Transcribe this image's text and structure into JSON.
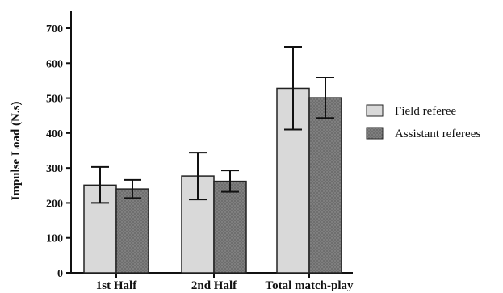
{
  "chart_data": {
    "type": "bar",
    "title": "",
    "xlabel": "",
    "ylabel": "Impulse Load (N.s)",
    "categories": [
      "1st Half",
      "2nd Half",
      "Total match-play"
    ],
    "series": [
      {
        "name": "Field referee",
        "color": "#d9d9d9",
        "pattern": "solid-light-gray",
        "values": [
          251,
          277,
          528
        ],
        "error_low": [
          200,
          210,
          410
        ],
        "error_high": [
          303,
          344,
          647
        ]
      },
      {
        "name": "Assistant referees",
        "color": "#6e6e6e",
        "pattern": "dotted-dark-gray",
        "values": [
          240,
          262,
          501
        ],
        "error_low": [
          214,
          232,
          443
        ],
        "error_high": [
          266,
          293,
          559
        ]
      }
    ],
    "ylim": [
      0,
      700
    ],
    "yticks": [
      "0",
      "100",
      "200",
      "300",
      "400",
      "500",
      "600",
      "700"
    ],
    "grid": false,
    "legend_position": "right"
  }
}
